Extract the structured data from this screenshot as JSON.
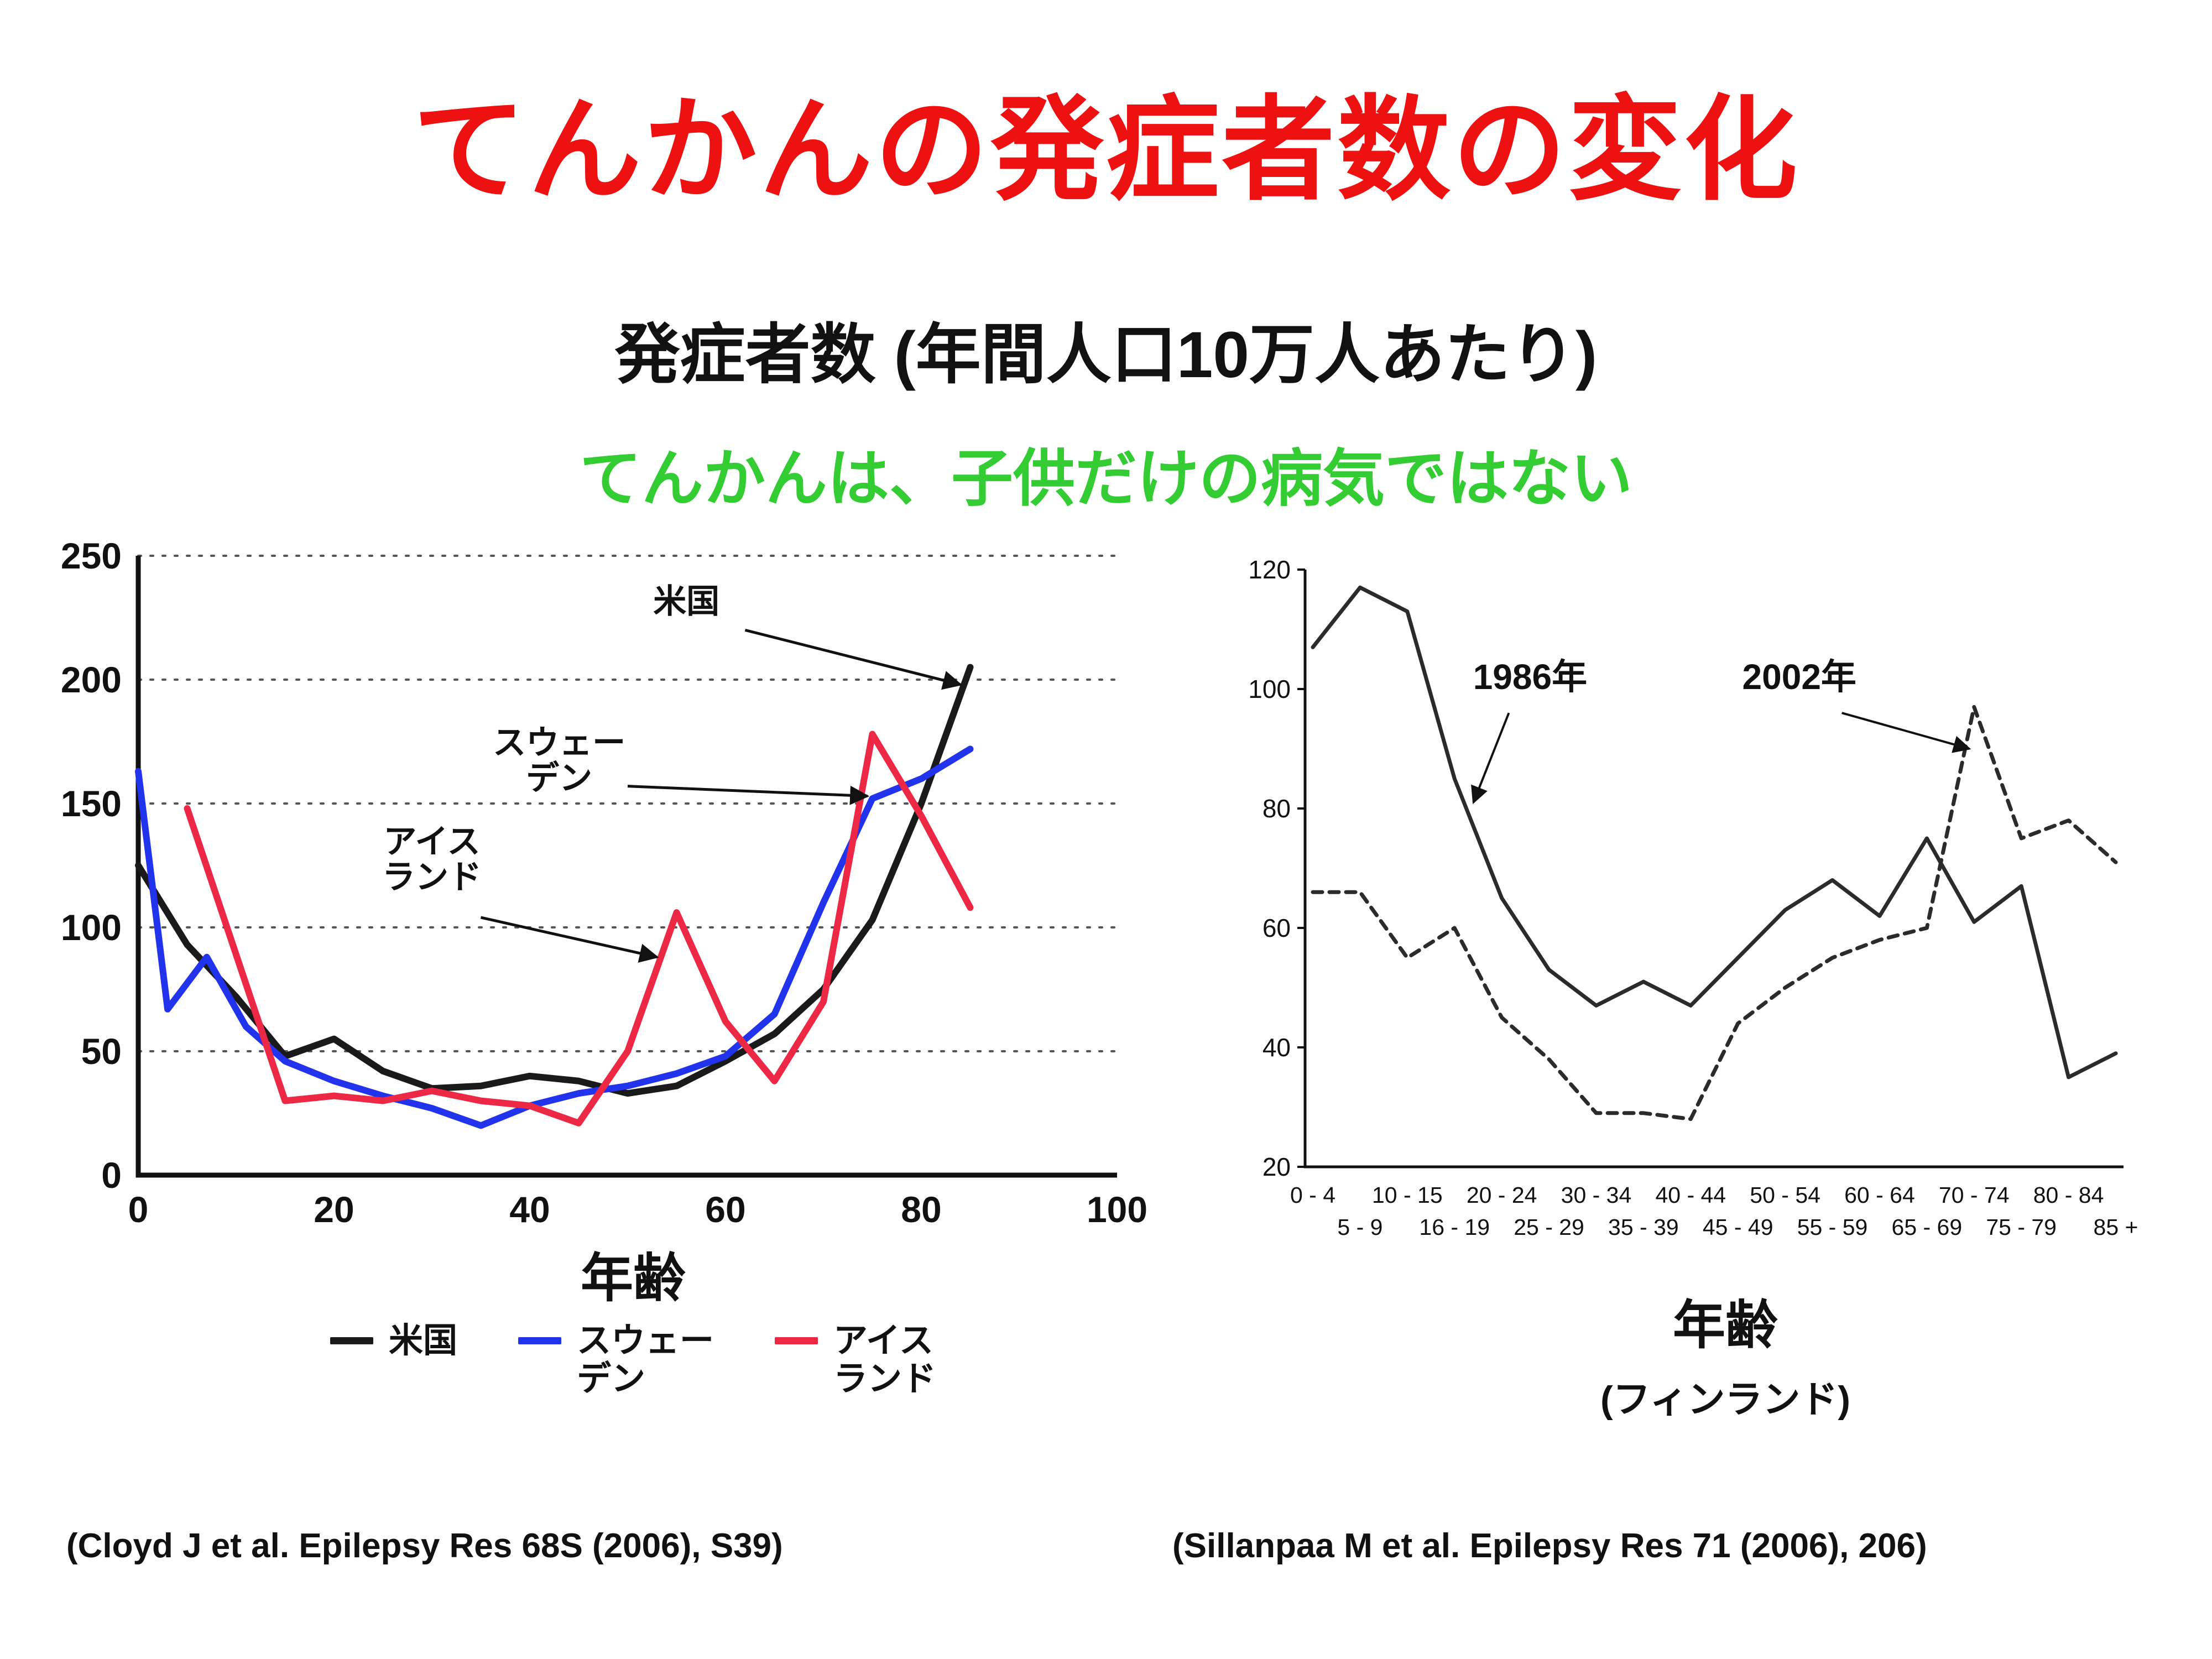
{
  "slide": {
    "title": "てんかんの発症者数の変化",
    "subtitle": "発症者数 (年間人口10万人あたり)",
    "message": "てんかんは、子供だけの病気ではない",
    "citation_left": "(Cloyd J et al. Epilepsy Res 68S (2006), S39)",
    "citation_right": "(Sillanpaa M et al. Epilepsy Res 71 (2006), 206)"
  },
  "colors": {
    "title": "#ee1111",
    "message": "#33cc33",
    "us": "#1a1a1a",
    "sweden": "#2233ee",
    "iceland": "#ed2844",
    "finland": "#2b2b2b",
    "anno_1986": "#22aa22",
    "anno_2002": "#ee1111"
  },
  "left_chart": {
    "xlabel": "年齢",
    "legend": [
      {
        "key": "us",
        "label": "米国",
        "color": "#1a1a1a"
      },
      {
        "key": "sweden",
        "label": "スウェー\nデン",
        "color": "#2233ee"
      },
      {
        "key": "iceland",
        "label": "アイス\nランド",
        "color": "#ed2844"
      }
    ]
  },
  "right_chart": {
    "xlabel": "年齢",
    "sublabel": "(フィンランド)"
  },
  "chart_data": [
    {
      "type": "line",
      "title": "発症者数 (年間人口10万人あたり)",
      "xlabel": "年齢",
      "ylabel": "",
      "xlim": [
        0,
        100
      ],
      "ylim": [
        0,
        250
      ],
      "xticks": [
        0,
        20,
        40,
        60,
        80,
        100
      ],
      "yticks": [
        0,
        50,
        100,
        150,
        200,
        250
      ],
      "grid": "horizontal-dotted",
      "series": [
        {
          "key": "us",
          "name": "米国",
          "color": "#1a1a1a",
          "x": [
            0,
            5,
            10,
            15,
            20,
            25,
            30,
            35,
            40,
            45,
            50,
            55,
            60,
            65,
            70,
            75,
            80,
            85
          ],
          "values": [
            125,
            93,
            72,
            48,
            55,
            42,
            35,
            36,
            40,
            38,
            33,
            36,
            46,
            57,
            75,
            103,
            150,
            205
          ]
        },
        {
          "key": "sweden",
          "name": "スウェーデン",
          "color": "#2233ee",
          "x": [
            0,
            3,
            7,
            11,
            15,
            20,
            25,
            30,
            35,
            40,
            45,
            50,
            55,
            60,
            65,
            70,
            75,
            80,
            85
          ],
          "values": [
            163,
            67,
            88,
            60,
            46,
            38,
            32,
            27,
            20,
            28,
            33,
            36,
            41,
            48,
            65,
            110,
            152,
            160,
            172
          ]
        },
        {
          "key": "iceland",
          "name": "アイスランド",
          "color": "#ed2844",
          "x": [
            5,
            15,
            20,
            25,
            30,
            35,
            40,
            45,
            50,
            55,
            60,
            65,
            70,
            75,
            80,
            85
          ],
          "values": [
            148,
            30,
            32,
            30,
            34,
            30,
            28,
            21,
            50,
            106,
            62,
            38,
            70,
            178,
            145,
            108
          ]
        }
      ],
      "annotations": [
        {
          "text": "米国",
          "tx": 56,
          "ty": 227,
          "sx": 62,
          "sy": 220,
          "ax": 84,
          "ay": 198,
          "color": "#111111"
        },
        {
          "text": "スウェー\nデン",
          "tx": 43,
          "ty": 170,
          "sx": 50,
          "sy": 157,
          "ax": 74.5,
          "ay": 153,
          "color": "#111111"
        },
        {
          "text": "アイス\nランド",
          "tx": 30,
          "ty": 130,
          "sx": 35,
          "sy": 104,
          "ax": 53,
          "ay": 88,
          "color": "#111111"
        }
      ]
    },
    {
      "type": "line",
      "title": "",
      "xlabel": "年齢",
      "region": "フィンランド",
      "ylim": [
        20,
        120
      ],
      "yticks": [
        20,
        40,
        60,
        80,
        100,
        120
      ],
      "categories": [
        "0 - 4",
        "5 - 9",
        "10 - 15",
        "16 - 19",
        "20 - 24",
        "25 - 29",
        "30 - 34",
        "35 - 39",
        "40 - 44",
        "45 - 49",
        "50 - 54",
        "55 - 59",
        "60 - 64",
        "65 - 69",
        "70 - 74",
        "75 - 79",
        "80 - 84",
        "85 +"
      ],
      "grid": "off",
      "series": [
        {
          "key": "finland-1986",
          "name": "1986年",
          "style": "solid",
          "color": "#2b2b2b",
          "values": [
            107,
            117,
            113,
            85,
            65,
            53,
            47,
            51,
            47,
            55,
            63,
            68,
            62,
            75,
            61,
            67,
            35,
            39
          ]
        },
        {
          "key": "finland-2002",
          "name": "2002年",
          "style": "dashed",
          "color": "#2b2b2b",
          "values": [
            66,
            66,
            55,
            60,
            45,
            38,
            29,
            29,
            28,
            44,
            50,
            55,
            58,
            60,
            97,
            75,
            78,
            71
          ]
        }
      ],
      "annotations": [
        {
          "text": "1986年",
          "ti": 4.6,
          "tv": 100,
          "si": 4.15,
          "sv": 96,
          "ai": 3.4,
          "av": 81,
          "color": "#22aa22"
        },
        {
          "text": "2002年",
          "ti": 10.3,
          "tv": 100,
          "si": 11.2,
          "sv": 96,
          "ai": 13.9,
          "av": 90,
          "color": "#ee1111"
        }
      ]
    }
  ]
}
